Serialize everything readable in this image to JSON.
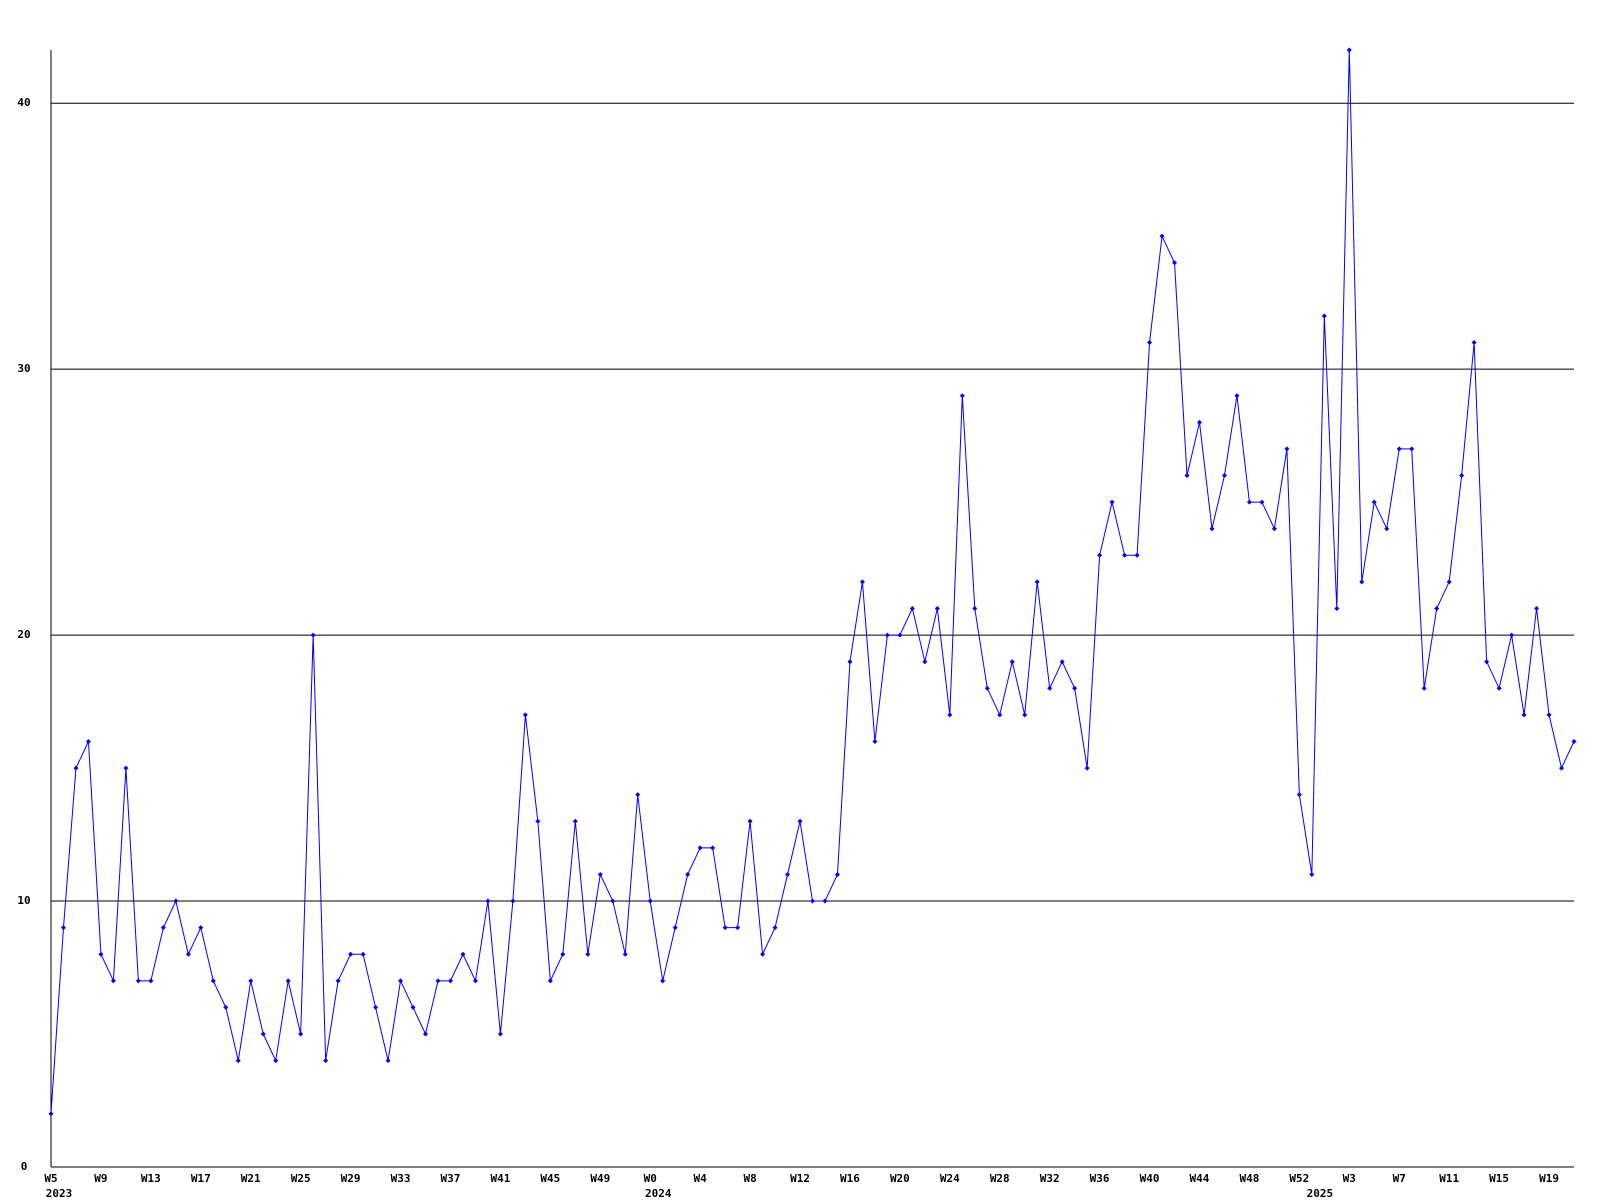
{
  "chart_data": {
    "type": "line",
    "categories": [
      "W5",
      null,
      null,
      null,
      "W9",
      null,
      null,
      null,
      "W13",
      null,
      null,
      null,
      "W17",
      null,
      null,
      null,
      "W21",
      null,
      null,
      null,
      "W25",
      null,
      null,
      null,
      "W29",
      null,
      null,
      null,
      "W33",
      null,
      null,
      null,
      "W37",
      null,
      null,
      null,
      "W41",
      null,
      null,
      null,
      "W45",
      null,
      null,
      null,
      "W49",
      null,
      null,
      null,
      "W0",
      null,
      null,
      null,
      "W4",
      null,
      null,
      null,
      "W8",
      null,
      null,
      null,
      "W12",
      null,
      null,
      null,
      "W16",
      null,
      null,
      null,
      "W20",
      null,
      null,
      null,
      "W24",
      null,
      null,
      null,
      "W28",
      null,
      null,
      null,
      "W32",
      null,
      null,
      null,
      "W36",
      null,
      null,
      null,
      "W40",
      null,
      null,
      null,
      "W44",
      null,
      null,
      null,
      "W48",
      null,
      null,
      null,
      "W52",
      null,
      null,
      null,
      "W3",
      null,
      null,
      null,
      "W7",
      null,
      null,
      null,
      "W11",
      null,
      null,
      null,
      "W15",
      null,
      null,
      null,
      "W19",
      null,
      null
    ],
    "category_years": [
      "2023",
      null,
      null,
      null,
      null,
      null,
      null,
      null,
      null,
      null,
      null,
      null,
      null,
      null,
      null,
      null,
      null,
      null,
      null,
      null,
      null,
      null,
      null,
      null,
      null,
      null,
      null,
      null,
      null,
      null,
      null,
      null,
      null,
      null,
      null,
      null,
      null,
      null,
      null,
      null,
      null,
      null,
      null,
      null,
      null,
      null,
      null,
      null,
      "2024",
      null,
      null,
      null,
      null,
      null,
      null,
      null,
      null,
      null,
      null,
      null,
      null,
      null,
      null,
      null,
      null,
      null,
      null,
      null,
      null,
      null,
      null,
      null,
      null,
      null,
      null,
      null,
      null,
      null,
      null,
      null,
      null,
      null,
      null,
      null,
      null,
      null,
      null,
      null,
      null,
      null,
      null,
      null,
      null,
      null,
      null,
      null,
      null,
      null,
      null,
      null,
      null,
      "2025",
      null,
      null,
      null,
      null,
      null,
      null,
      null,
      null,
      null,
      null,
      null,
      null,
      null,
      null,
      null,
      null,
      null,
      null,
      null,
      null,
      null
    ],
    "values": [
      2,
      9,
      15,
      16,
      8,
      7,
      15,
      7,
      7,
      9,
      10,
      8,
      9,
      7,
      6,
      4,
      7,
      5,
      4,
      7,
      5,
      20,
      4,
      7,
      8,
      8,
      6,
      4,
      7,
      6,
      5,
      7,
      7,
      8,
      7,
      10,
      5,
      10,
      17,
      13,
      7,
      8,
      13,
      8,
      11,
      10,
      8,
      14,
      10,
      7,
      9,
      11,
      12,
      12,
      9,
      9,
      13,
      8,
      9,
      11,
      13,
      10,
      10,
      11,
      19,
      22,
      16,
      20,
      20,
      21,
      19,
      21,
      17,
      29,
      21,
      18,
      17,
      19,
      17,
      22,
      18,
      19,
      18,
      15,
      23,
      25,
      23,
      23,
      31,
      35,
      34,
      26,
      28,
      24,
      26,
      29,
      25,
      25,
      24,
      27,
      14,
      11,
      32,
      21,
      42,
      22,
      25,
      24,
      27,
      27,
      18,
      21,
      22,
      26,
      31,
      19,
      18,
      20,
      17,
      21,
      17,
      15,
      16
    ],
    "color": "#0000ff",
    "ylim": [
      0,
      42
    ],
    "yticks": [
      0,
      10,
      20,
      30,
      40
    ],
    "grid": true
  }
}
